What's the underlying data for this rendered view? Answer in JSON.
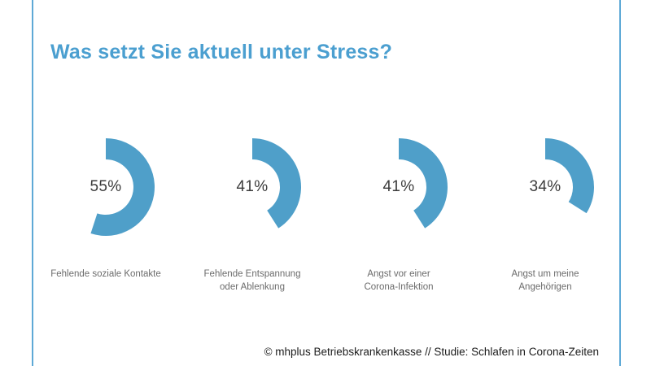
{
  "page": {
    "title": "Was setzt Sie aktuell unter Stress?",
    "footer": "© mhplus Betriebskrankenkasse // Studie: Schlafen in Corona-Zeiten"
  },
  "colors": {
    "title_blue": "#4B9FD0",
    "arc_blue": "#4F9FC9",
    "border_line_blue": "#5EA9D6",
    "percent_text": "#3B3B3B",
    "category_text": "#6B6B6B",
    "footer_text": "#1C1C1C"
  },
  "chart_data": {
    "type": "pie",
    "variant": "donut-arc-gauges",
    "title": "Was setzt Sie aktuell unter Stress?",
    "categories": [
      "Fehlende soziale Kontakte",
      "Fehlende Entspannung oder Ablenkung",
      "Angst vor einer Corona-Infektion",
      "Angst um meine Angehörigen"
    ],
    "values": [
      55,
      41,
      41,
      34
    ],
    "unit": "%",
    "value_display": [
      "55%",
      "41%",
      "41%",
      "34%"
    ],
    "category_label_lines": [
      [
        "Fehlende soziale Kontakte"
      ],
      [
        "Fehlende Entspannung",
        "oder Ablenkung"
      ],
      [
        "Angst vor einer",
        "Corona-Infektion"
      ],
      [
        "Angst um meine",
        "Angehörigen"
      ]
    ],
    "arc": {
      "start_angle_deg": 0,
      "direction": "clockwise",
      "full_circle_deg": 360
    },
    "color": "#4F9FC9",
    "legend": "none",
    "source": "© mhplus Betriebskrankenkasse // Studie: Schlafen in Corona-Zeiten"
  }
}
